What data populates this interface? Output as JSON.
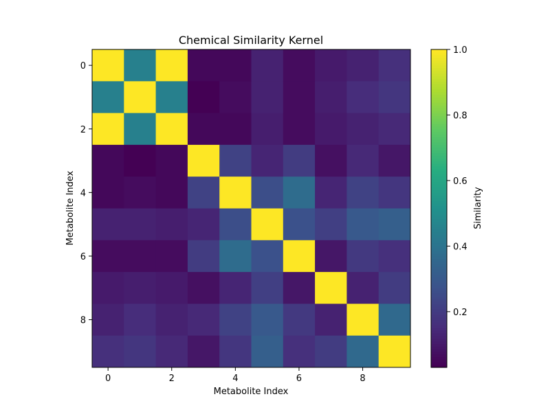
{
  "chart_data": {
    "type": "heatmap",
    "title": "Chemical Similarity Kernel",
    "xlabel": "Metabolite Index",
    "ylabel": "Metabolite Index",
    "x": [
      0,
      1,
      2,
      3,
      4,
      5,
      6,
      7,
      8,
      9
    ],
    "y": [
      0,
      1,
      2,
      3,
      4,
      5,
      6,
      7,
      8,
      9
    ],
    "x_ticks": [
      0,
      2,
      4,
      6,
      8
    ],
    "y_ticks": [
      0,
      2,
      4,
      6,
      8
    ],
    "values": [
      [
        1.0,
        0.45,
        1.0,
        0.05,
        0.05,
        0.12,
        0.06,
        0.1,
        0.12,
        0.16
      ],
      [
        0.45,
        1.0,
        0.45,
        0.03,
        0.06,
        0.12,
        0.06,
        0.11,
        0.15,
        0.18
      ],
      [
        1.0,
        0.45,
        1.0,
        0.05,
        0.05,
        0.11,
        0.06,
        0.1,
        0.12,
        0.14
      ],
      [
        0.05,
        0.03,
        0.05,
        1.0,
        0.22,
        0.13,
        0.2,
        0.07,
        0.14,
        0.09
      ],
      [
        0.05,
        0.06,
        0.05,
        0.22,
        1.0,
        0.26,
        0.37,
        0.13,
        0.22,
        0.18
      ],
      [
        0.12,
        0.12,
        0.11,
        0.13,
        0.26,
        1.0,
        0.27,
        0.21,
        0.3,
        0.32
      ],
      [
        0.06,
        0.06,
        0.06,
        0.2,
        0.37,
        0.27,
        1.0,
        0.09,
        0.19,
        0.16
      ],
      [
        0.1,
        0.11,
        0.1,
        0.07,
        0.13,
        0.21,
        0.09,
        1.0,
        0.12,
        0.2
      ],
      [
        0.12,
        0.15,
        0.12,
        0.14,
        0.22,
        0.3,
        0.19,
        0.12,
        1.0,
        0.36
      ],
      [
        0.16,
        0.18,
        0.14,
        0.09,
        0.18,
        0.32,
        0.16,
        0.2,
        0.36,
        1.0
      ]
    ],
    "colormap": "viridis",
    "vmin": 0.03,
    "vmax": 1.0,
    "colorbar": {
      "label": "Similarity",
      "ticks": [
        0.2,
        0.4,
        0.6,
        0.8,
        1.0
      ],
      "tick_labels": [
        "0.2",
        "0.4",
        "0.6",
        "0.8",
        "1.0"
      ]
    },
    "grid": false
  }
}
